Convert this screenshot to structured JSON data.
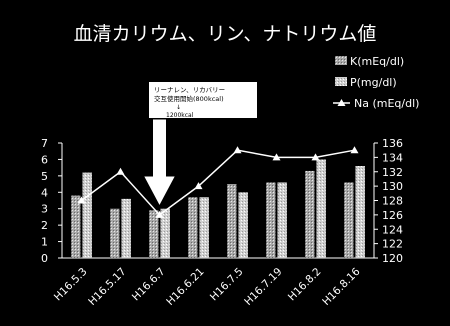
{
  "chart_data": {
    "type": "bar",
    "title": "血清カリウム、リン、ナトリウム値",
    "categories": [
      "H16.5.3",
      "H16.5.17",
      "H16.6.7",
      "H16.6.21",
      "H16.7.5",
      "H16.7.19",
      "H16.8.2",
      "H16.8.16"
    ],
    "series": [
      {
        "name": "K(mEq/dl)",
        "kind": "bar",
        "axis": "left",
        "values": [
          3.8,
          3.0,
          2.9,
          3.7,
          4.5,
          4.6,
          5.3,
          4.6
        ]
      },
      {
        "name": "P(mg/dl)",
        "kind": "bar",
        "axis": "left",
        "values": [
          5.2,
          3.6,
          3.0,
          3.7,
          4.0,
          4.6,
          6.0,
          5.6
        ]
      },
      {
        "name": "Na (mEq/dl)",
        "kind": "line",
        "axis": "right",
        "values": [
          128,
          132,
          126,
          130,
          135,
          134,
          134,
          135
        ]
      }
    ],
    "y_left": {
      "min": 0,
      "max": 7,
      "ticks": [
        0,
        1,
        2,
        3,
        4,
        5,
        6,
        7
      ],
      "label": ""
    },
    "y_right": {
      "min": 120,
      "max": 136,
      "ticks": [
        120,
        122,
        124,
        126,
        128,
        130,
        132,
        134,
        136
      ],
      "label": ""
    },
    "annotation": {
      "lines": [
        "リーナレン、リカバリー",
        "交互使用開始(800kcal)",
        "↓",
        "1200kcal"
      ],
      "target_category": "H16.6.7"
    },
    "legend_position": "top-right",
    "grid": false,
    "colors": {
      "background": "#000000",
      "text": "#ffffff",
      "k_bar": "#bcbcbc",
      "p_bar": "#dadada",
      "na_line": "#ffffff",
      "annotation_box": "#ffffff",
      "annotation_text": "#000000"
    }
  }
}
